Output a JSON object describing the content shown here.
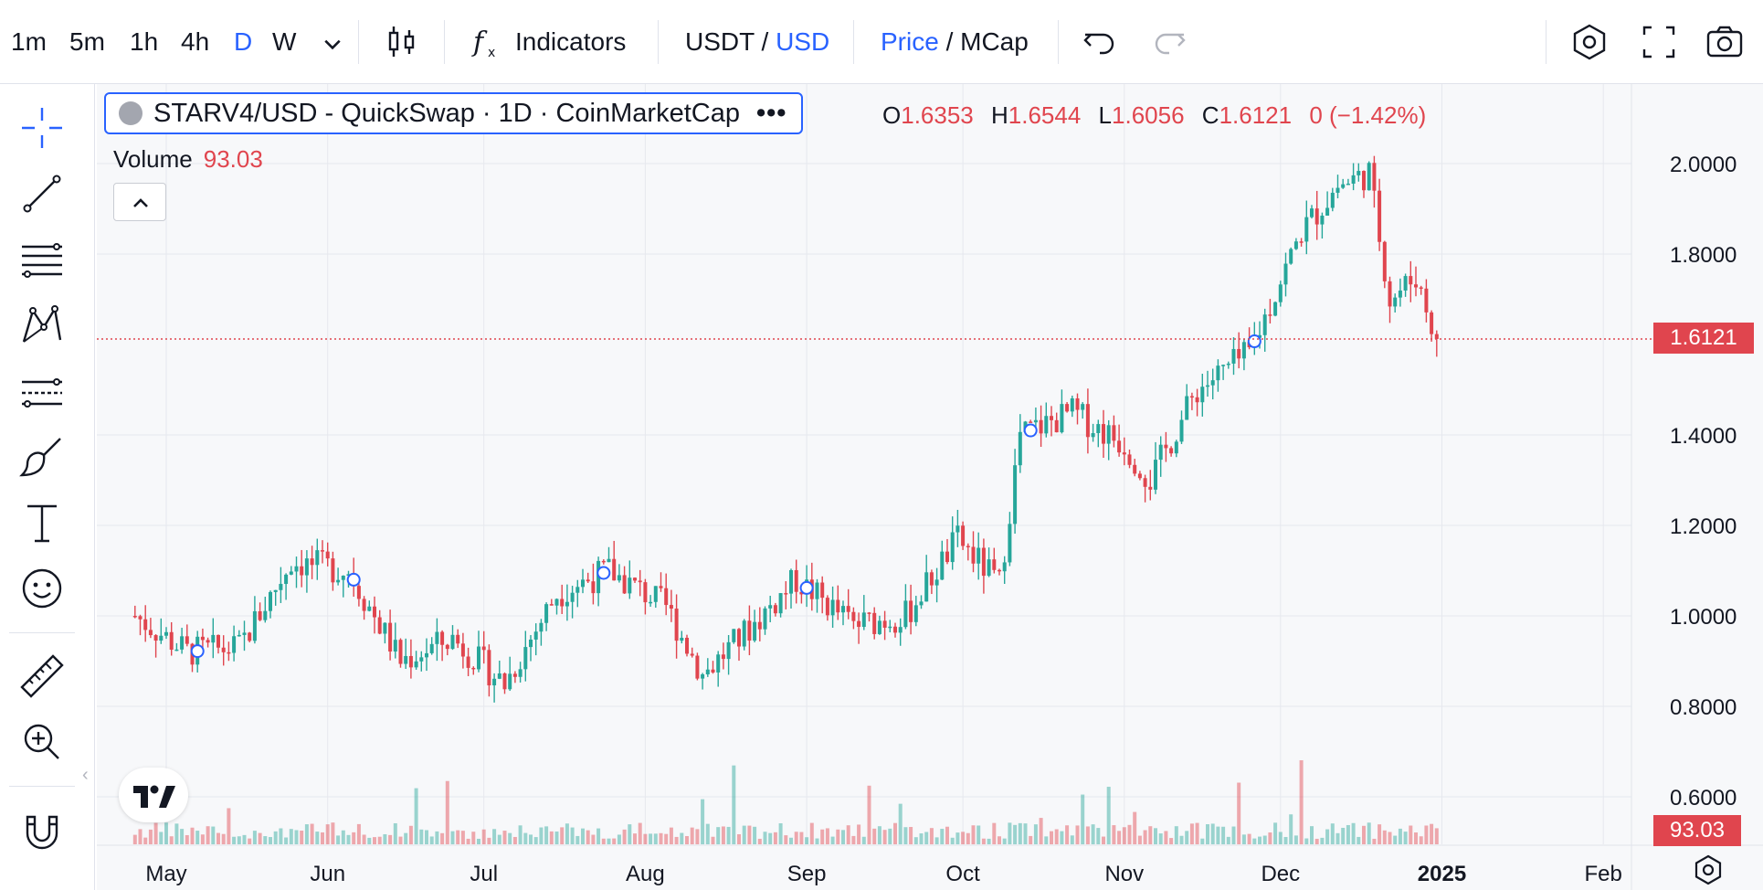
{
  "toolbar": {
    "intervals": [
      "1m",
      "5m",
      "1h",
      "4h",
      "D",
      "W"
    ],
    "active_interval": "D",
    "indicators_label": "Indicators",
    "quote_base": "USDT",
    "quote_sep": " / ",
    "quote_active": "USD",
    "price_label": "Price",
    "price_sep": " / ",
    "mcap_label": "MCap"
  },
  "left_tools": [
    "crosshair-icon",
    "trendline-icon",
    "fib-icon",
    "pattern-icon",
    "forecast-icon",
    "brush-icon",
    "text-icon",
    "emoji-icon",
    "ruler-icon",
    "zoom-icon",
    "magnet-icon"
  ],
  "legend": {
    "symbol": "STARV4/USD - QuickSwap · 1D · CoinMarketCap",
    "more": "•••",
    "o_label": "O",
    "o_value": "1.6353",
    "h_label": "H",
    "h_value": "1.6544",
    "l_label": "L",
    "l_value": "1.6056",
    "c_label": "C",
    "c_value": "1.6121",
    "change": "0 (−1.42%)",
    "volume_label": "Volume",
    "volume_value": "93.03"
  },
  "price_tag": "1.6121",
  "volume_tag": "93.03",
  "colors": {
    "up": "#26a69a",
    "down": "#e0454e",
    "accent": "#2962ff",
    "grid": "#e6e8ee"
  },
  "chart_data": {
    "type": "candlestick",
    "title": "STARV4/USD - QuickSwap · 1D · CoinMarketCap",
    "y_ticks": [
      "2.0000",
      "1.8000",
      "1.4000",
      "1.2000",
      "1.0000",
      "0.8000",
      "0.6000"
    ],
    "x_ticks": [
      "May",
      "Jun",
      "Jul",
      "Aug",
      "Sep",
      "Oct",
      "Nov",
      "Dec",
      "2025",
      "Feb"
    ],
    "ylim": [
      0.5,
      2.05
    ],
    "last_close": 1.6121,
    "series_close": [
      {
        "date": "2024-04-25",
        "close": 1.0
      },
      {
        "date": "2024-05-05",
        "close": 0.92
      },
      {
        "date": "2024-05-15",
        "close": 0.93
      },
      {
        "date": "2024-05-25",
        "close": 1.12
      },
      {
        "date": "2024-06-05",
        "close": 1.1
      },
      {
        "date": "2024-06-15",
        "close": 0.9
      },
      {
        "date": "2024-06-25",
        "close": 0.95
      },
      {
        "date": "2024-07-05",
        "close": 0.85
      },
      {
        "date": "2024-07-15",
        "close": 1.05
      },
      {
        "date": "2024-07-25",
        "close": 1.1
      },
      {
        "date": "2024-08-05",
        "close": 1.02
      },
      {
        "date": "2024-08-12",
        "close": 0.87
      },
      {
        "date": "2024-08-20",
        "close": 0.96
      },
      {
        "date": "2024-08-30",
        "close": 1.08
      },
      {
        "date": "2024-09-10",
        "close": 0.98
      },
      {
        "date": "2024-09-20",
        "close": 1.0
      },
      {
        "date": "2024-09-30",
        "close": 1.17
      },
      {
        "date": "2024-10-08",
        "close": 1.07
      },
      {
        "date": "2024-10-12",
        "close": 1.4
      },
      {
        "date": "2024-10-22",
        "close": 1.45
      },
      {
        "date": "2024-11-01",
        "close": 1.38
      },
      {
        "date": "2024-11-06",
        "close": 1.3
      },
      {
        "date": "2024-11-15",
        "close": 1.5
      },
      {
        "date": "2024-11-25",
        "close": 1.58
      },
      {
        "date": "2024-12-05",
        "close": 1.85
      },
      {
        "date": "2024-12-12",
        "close": 1.95
      },
      {
        "date": "2024-12-18",
        "close": 1.98
      },
      {
        "date": "2024-12-22",
        "close": 1.7
      },
      {
        "date": "2024-12-27",
        "close": 1.75
      },
      {
        "date": "2024-12-31",
        "close": 1.6121
      }
    ]
  }
}
